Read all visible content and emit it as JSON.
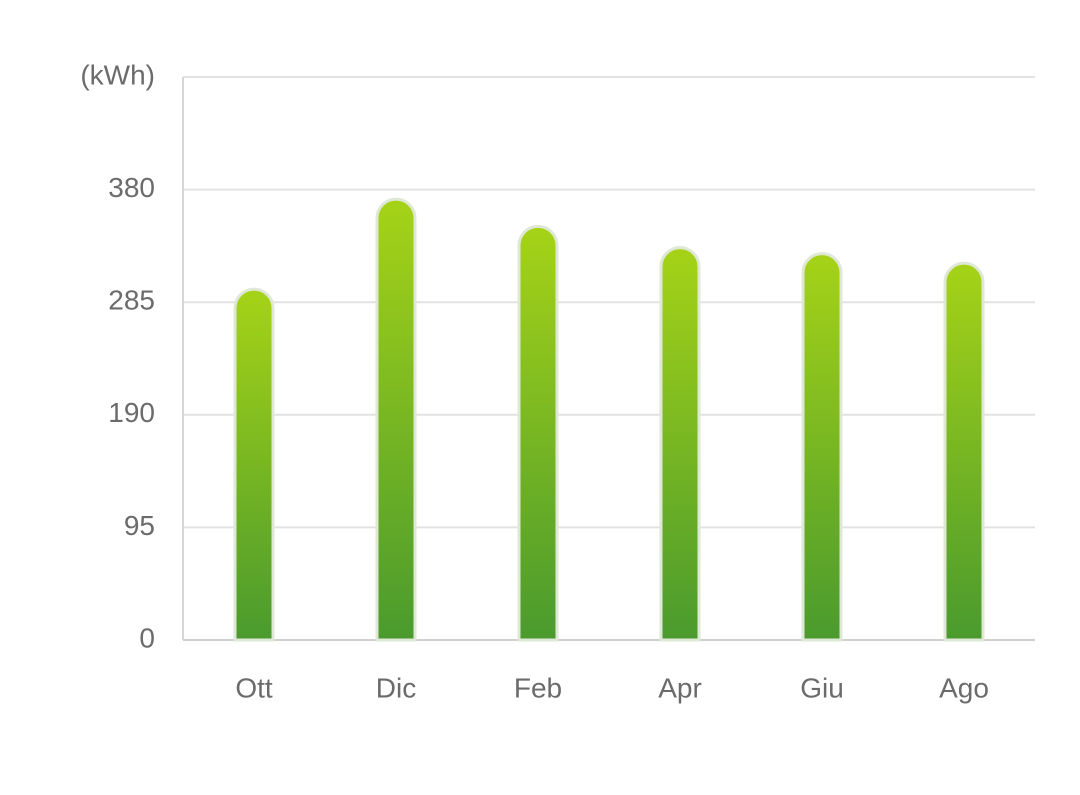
{
  "chart_data": {
    "type": "bar",
    "y_label": "(kWh)",
    "categories": [
      "Ott",
      "Dic",
      "Feb",
      "Apr",
      "Giu",
      "Ago"
    ],
    "values": [
      296,
      372,
      349,
      331,
      326,
      318
    ],
    "color": [
      "#a6d317",
      "#4a9a2e"
    ],
    "ylim": [
      0,
      475
    ],
    "yticks": [
      0,
      95,
      190,
      285,
      380
    ],
    "grid": true
  }
}
